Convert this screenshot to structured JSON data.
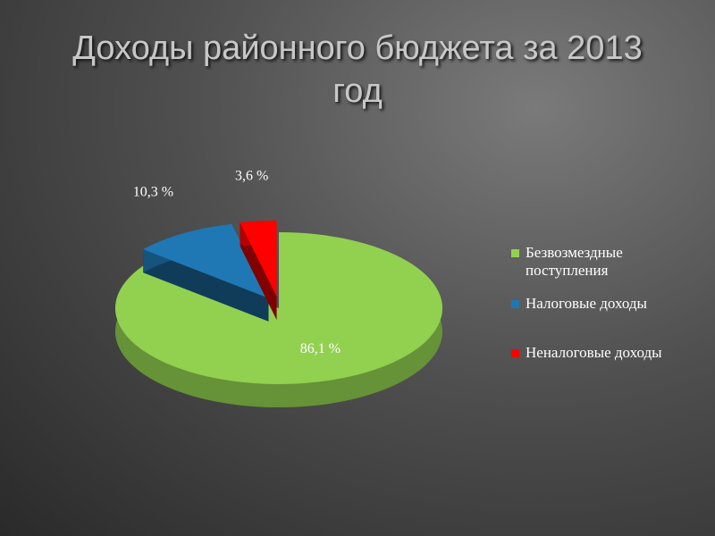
{
  "chart_data": {
    "type": "pie3d",
    "title": "Доходы районного бюджета за 2013 год",
    "categories": [
      "Безвозмездные поступления",
      "Налоговые доходы",
      "Неналоговые доходы"
    ],
    "values": [
      86.1,
      10.3,
      3.6
    ],
    "value_labels": [
      "86,1 %",
      "10,3 %",
      "3,6 %"
    ],
    "colors": [
      "#92d050",
      "#1f78b4",
      "#ff0000"
    ],
    "legend": "right"
  }
}
